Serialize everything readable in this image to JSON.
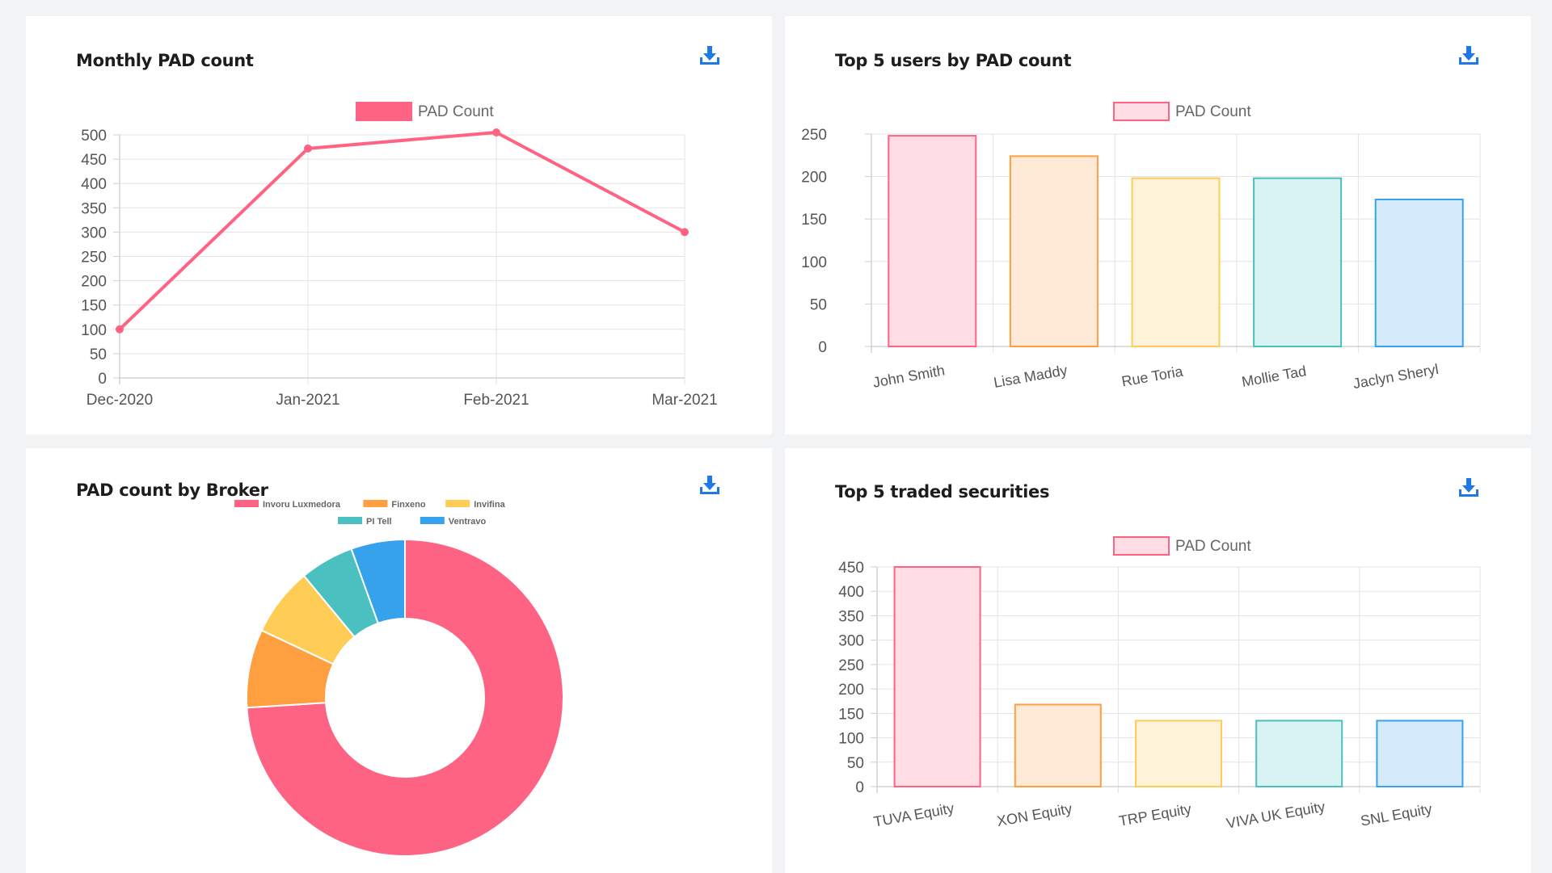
{
  "colors": {
    "pink": "#ff6384",
    "pink_fill": "#ffdde4",
    "orange": "#ff9f40",
    "orange_fill": "#ffead7",
    "yellow": "#ffcd56",
    "yellow_fill": "#fff4d9",
    "teal": "#4bc0c0",
    "teal_fill": "#d9f2f2",
    "blue": "#36a2eb",
    "blue_fill": "#d5eafb",
    "download": "#1e78e6"
  },
  "icons": {
    "download": "download-icon"
  },
  "cards": {
    "monthly": {
      "title": "Monthly PAD count"
    },
    "top_users": {
      "title": "Top 5 users by PAD count"
    },
    "broker": {
      "title": "PAD count by Broker"
    },
    "securities": {
      "title": "Top 5 traded securities"
    }
  },
  "chart_data": [
    {
      "id": "monthly",
      "type": "line",
      "title": "Monthly PAD count",
      "categories": [
        "Dec-2020",
        "Jan-2021",
        "Feb-2021",
        "Mar-2021"
      ],
      "series": [
        {
          "name": "PAD Count",
          "values": [
            100,
            472,
            505,
            300
          ],
          "color": "#ff6384"
        }
      ],
      "ylim": [
        0,
        500
      ],
      "yticks": [
        0,
        50,
        100,
        150,
        200,
        250,
        300,
        350,
        400,
        450,
        500
      ],
      "legend": "top",
      "grid": true
    },
    {
      "id": "top_users",
      "type": "bar",
      "title": "Top 5 users by PAD count",
      "categories": [
        "John Smith",
        "Lisa Maddy",
        "Rue Toria",
        "Mollie Tad",
        "Jaclyn Sheryl"
      ],
      "series": [
        {
          "name": "PAD Count",
          "values": [
            248,
            224,
            198,
            198,
            173
          ]
        }
      ],
      "ylim": [
        0,
        250
      ],
      "yticks": [
        0,
        50,
        100,
        150,
        200,
        250
      ],
      "legend": "top",
      "grid": true
    },
    {
      "id": "broker",
      "type": "pie",
      "title": "PAD count by Broker",
      "labels": [
        "Invoru Luxmedora",
        "Finxeno",
        "Invifina",
        "PI Tell",
        "Ventravo"
      ],
      "values": [
        74,
        8,
        7,
        5.5,
        5.5
      ],
      "colors": [
        "#ff6384",
        "#ff9f40",
        "#ffcd56",
        "#4bc0c0",
        "#36a2eb"
      ],
      "donut": true,
      "legend": "top"
    },
    {
      "id": "securities",
      "type": "bar",
      "title": "Top 5 traded securities",
      "categories": [
        "TUVA Equity",
        "XON Equity",
        "TRP Equity",
        "VIVA UK Equity",
        "SNL Equity"
      ],
      "series": [
        {
          "name": "PAD Count",
          "values": [
            450,
            168,
            135,
            135,
            135
          ]
        }
      ],
      "ylim": [
        0,
        450
      ],
      "yticks": [
        0,
        50,
        100,
        150,
        200,
        250,
        300,
        350,
        400,
        450
      ],
      "legend": "top",
      "grid": true
    }
  ]
}
